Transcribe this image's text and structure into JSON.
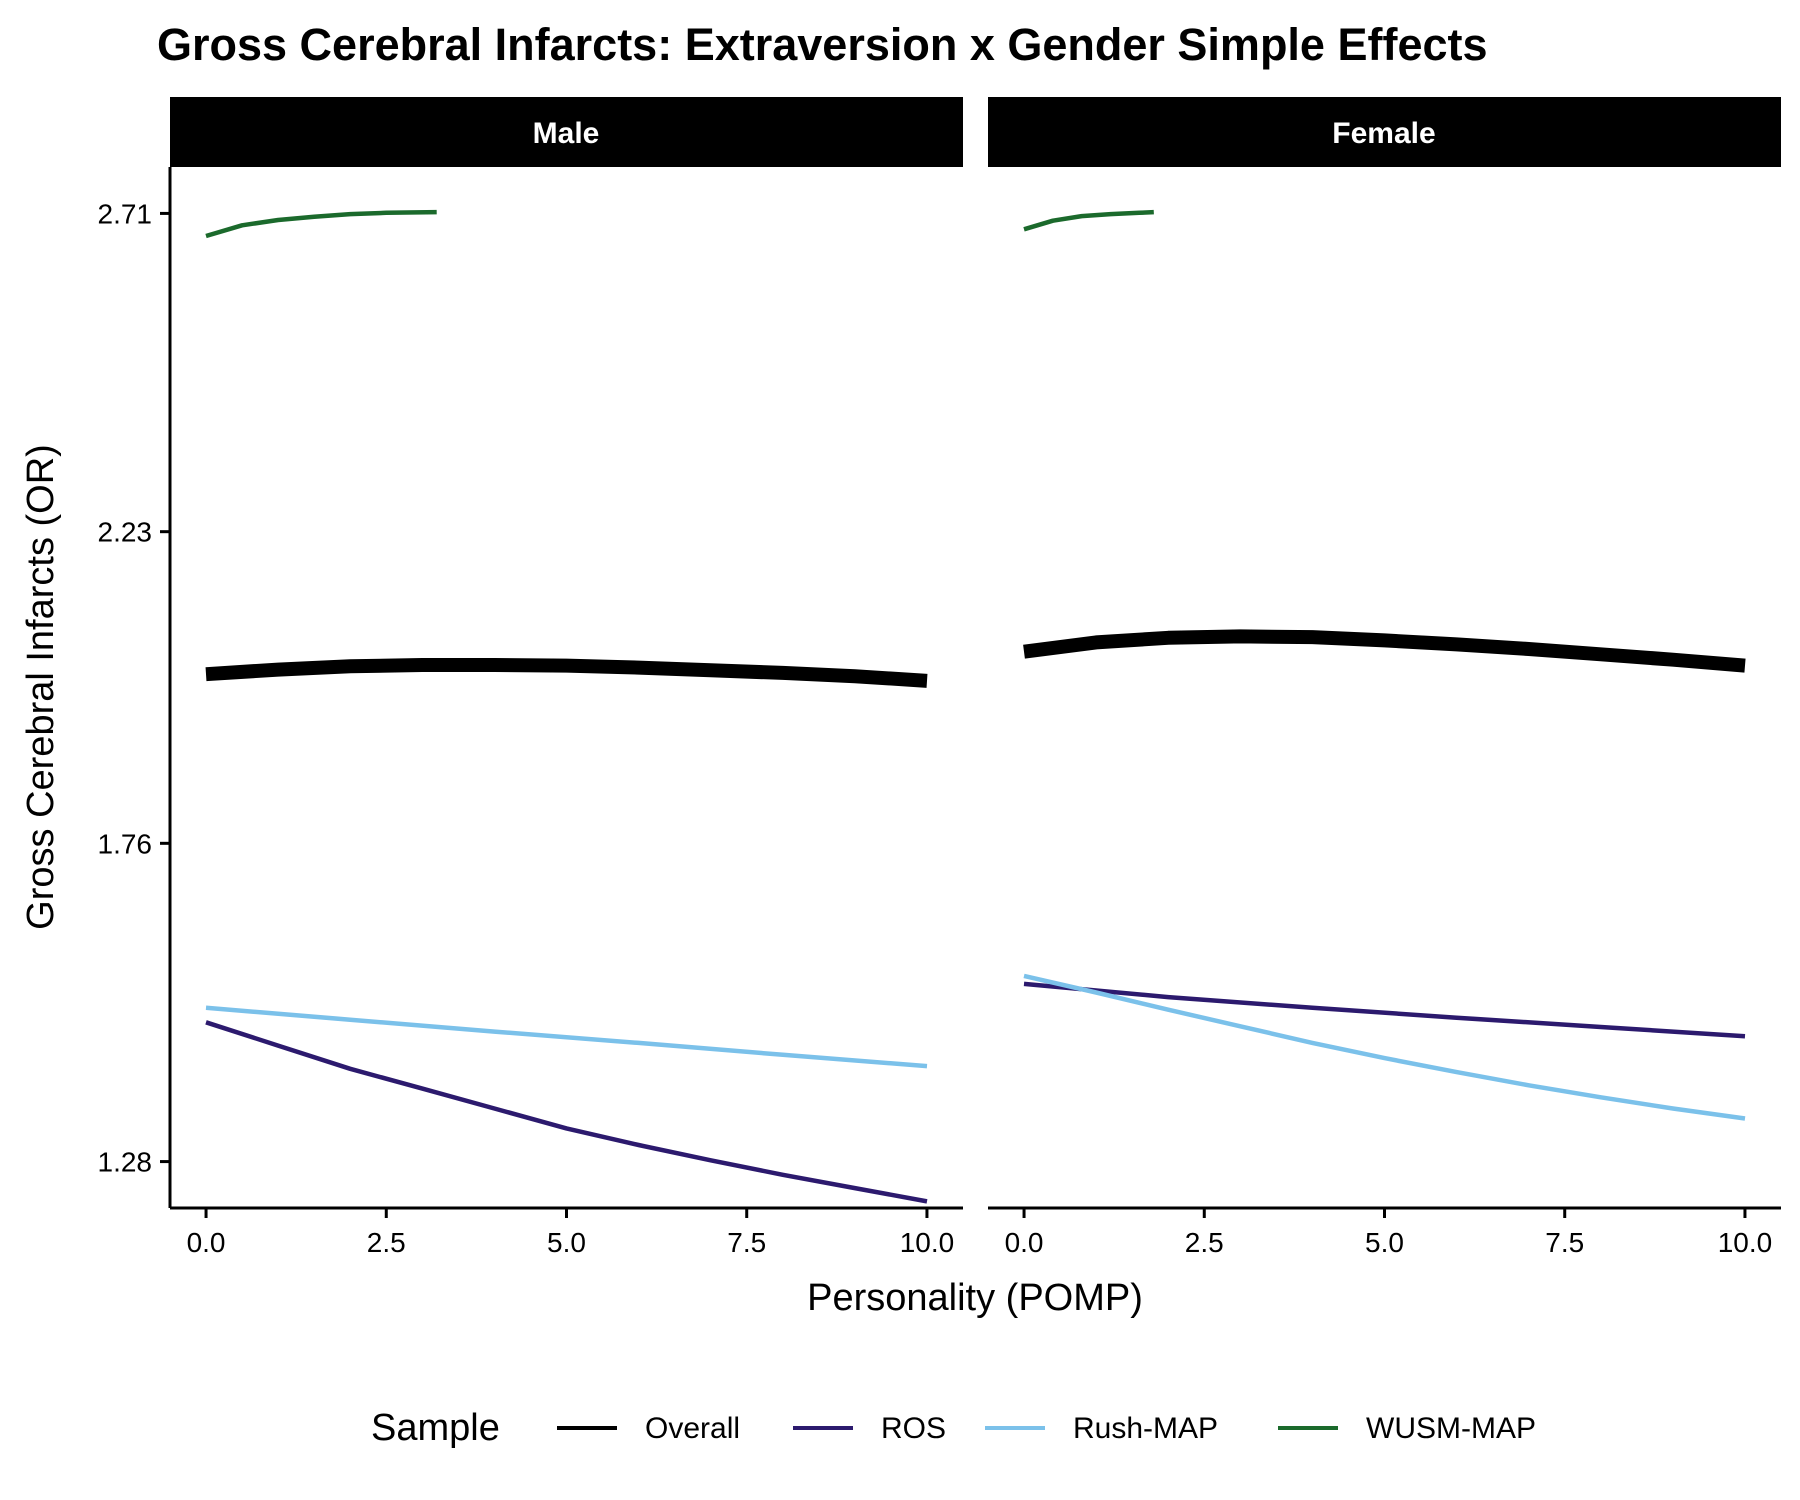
{
  "chart_data": {
    "type": "line",
    "title": "Gross Cerebral Infarcts: Extraversion x Gender Simple Effects",
    "xlabel": "Personality (POMP)",
    "ylabel": "Gross Cerebral Infarcts (OR)",
    "xlim": [
      -0.5,
      10.5
    ],
    "ylim": [
      1.21,
      2.78
    ],
    "x_ticks": [
      0,
      2.5,
      5,
      7.5,
      10
    ],
    "x_tick_labels": [
      "0.0",
      "2.5",
      "5.0",
      "7.5",
      "10.0"
    ],
    "y_ticks": [
      1.28,
      1.76,
      2.23,
      2.71
    ],
    "y_tick_labels": [
      "1.28",
      "1.76",
      "2.23",
      "2.71"
    ],
    "grid": false,
    "legend": {
      "title": "Sample",
      "position": "bottom",
      "entries": [
        "Overall",
        "ROS",
        "Rush-MAP",
        "WUSM-MAP"
      ]
    },
    "panels": [
      {
        "label": "Male",
        "series": [
          {
            "name": "Overall",
            "color": "#000000",
            "width": "thick",
            "x": [
              0,
              1,
              2,
              3,
              4,
              5,
              6,
              7,
              8,
              9,
              10
            ],
            "y": [
              2.015,
              2.022,
              2.027,
              2.029,
              2.029,
              2.028,
              2.025,
              2.021,
              2.017,
              2.012,
              2.005
            ]
          },
          {
            "name": "ROS",
            "color": "#2c1a6e",
            "width": "normal",
            "x": [
              0,
              1,
              2,
              3,
              4,
              5,
              6,
              7,
              8,
              9,
              10
            ],
            "y": [
              1.49,
              1.455,
              1.42,
              1.39,
              1.36,
              1.33,
              1.305,
              1.282,
              1.26,
              1.24,
              1.22
            ]
          },
          {
            "name": "Rush-MAP",
            "color": "#7bc1ea",
            "width": "normal",
            "x": [
              0,
              2,
              4,
              6,
              8,
              10
            ],
            "y": [
              1.512,
              1.494,
              1.476,
              1.459,
              1.441,
              1.424
            ]
          },
          {
            "name": "WUSM-MAP",
            "color": "#1b6a2c",
            "width": "normal",
            "x": [
              0,
              0.5,
              1,
              1.5,
              2,
              2.5,
              3.2
            ],
            "y": [
              2.676,
              2.692,
              2.7,
              2.705,
              2.709,
              2.711,
              2.712
            ]
          }
        ]
      },
      {
        "label": "Female",
        "series": [
          {
            "name": "Overall",
            "color": "#000000",
            "width": "thick",
            "x": [
              0,
              1,
              2,
              3,
              4,
              5,
              6,
              7,
              8,
              9,
              10
            ],
            "y": [
              2.049,
              2.063,
              2.07,
              2.072,
              2.071,
              2.066,
              2.06,
              2.053,
              2.045,
              2.037,
              2.028
            ]
          },
          {
            "name": "ROS",
            "color": "#2c1a6e",
            "width": "normal",
            "x": [
              0,
              2,
              4,
              6,
              8,
              10
            ],
            "y": [
              1.548,
              1.528,
              1.512,
              1.497,
              1.483,
              1.469
            ]
          },
          {
            "name": "Rush-MAP",
            "color": "#7bc1ea",
            "width": "normal",
            "x": [
              0,
              1,
              2,
              3,
              4,
              5,
              6,
              7,
              8,
              9,
              10
            ],
            "y": [
              1.56,
              1.535,
              1.509,
              1.484,
              1.459,
              1.436,
              1.415,
              1.395,
              1.377,
              1.36,
              1.345
            ]
          },
          {
            "name": "WUSM-MAP",
            "color": "#1b6a2c",
            "width": "normal",
            "x": [
              0,
              0.4,
              0.8,
              1.2,
              1.6,
              1.8
            ],
            "y": [
              2.686,
              2.699,
              2.706,
              2.709,
              2.711,
              2.712
            ]
          }
        ]
      }
    ]
  }
}
